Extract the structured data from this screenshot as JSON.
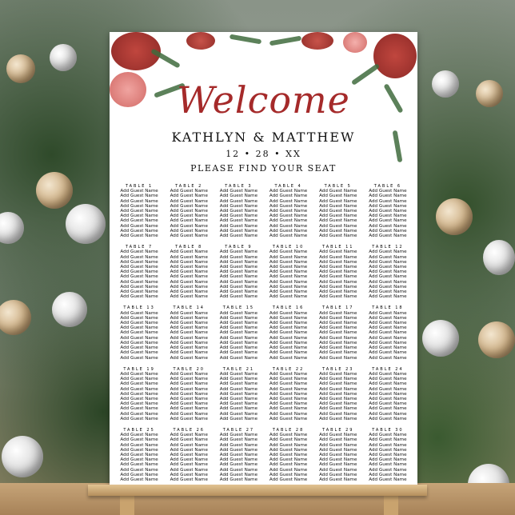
{
  "poster": {
    "welcome": "Welcome",
    "names": "KATHLYN & MATTHEW",
    "date": "12 • 28 • XX",
    "subtitle": "PLEASE FIND YOUR SEAT",
    "accent_color": "#a52a2a",
    "guest_placeholder": "Add Guest Name",
    "tables": [
      {
        "label": "TABLE 1",
        "guests": [
          "Add Guest Name",
          "Add Guest Name",
          "Add Guest Name",
          "Add Guest Name",
          "Add Guest Name",
          "Add Guest Name",
          "Add Guest Name",
          "Add Guest Name",
          "Add Guest Name",
          "Add Guest Name"
        ]
      },
      {
        "label": "TABLE 2",
        "guests": [
          "Add Guest Name",
          "Add Guest Name",
          "Add Guest Name",
          "Add Guest Name",
          "Add Guest Name",
          "Add Guest Name",
          "Add Guest Name",
          "Add Guest Name",
          "Add Guest Name",
          "Add Guest Name"
        ]
      },
      {
        "label": "TABLE 3",
        "guests": [
          "Add Guest Name",
          "Add Guest Name",
          "Add Guest Name",
          "Add Guest Name",
          "Add Guest Name",
          "Add Guest Name",
          "Add Guest Name",
          "Add Guest Name",
          "Add Guest Name",
          "Add Guest Name"
        ]
      },
      {
        "label": "TABLE 4",
        "guests": [
          "Add Guest Name",
          "Add Guest Name",
          "Add Guest Name",
          "Add Guest Name",
          "Add Guest Name",
          "Add Guest Name",
          "Add Guest Name",
          "Add Guest Name",
          "Add Guest Name",
          "Add Guest Name"
        ]
      },
      {
        "label": "TABLE 5",
        "guests": [
          "Add Guest Name",
          "Add Guest Name",
          "Add Guest Name",
          "Add Guest Name",
          "Add Guest Name",
          "Add Guest Name",
          "Add Guest Name",
          "Add Guest Name",
          "Add Guest Name",
          "Add Guest Name"
        ]
      },
      {
        "label": "TABLE 6",
        "guests": [
          "Add Guest Name",
          "Add Guest Name",
          "Add Guest Name",
          "Add Guest Name",
          "Add Guest Name",
          "Add Guest Name",
          "Add Guest Name",
          "Add Guest Name",
          "Add Guest Name",
          "Add Guest Name"
        ]
      },
      {
        "label": "TABLE 7",
        "guests": [
          "Add Guest Name",
          "Add Guest Name",
          "Add Guest Name",
          "Add Guest Name",
          "Add Guest Name",
          "Add Guest Name",
          "Add Guest Name",
          "Add Guest Name",
          "Add Guest Name",
          "Add Guest Name"
        ]
      },
      {
        "label": "TABLE 8",
        "guests": [
          "Add Guest Name",
          "Add Guest Name",
          "Add Guest Name",
          "Add Guest Name",
          "Add Guest Name",
          "Add Guest Name",
          "Add Guest Name",
          "Add Guest Name",
          "Add Guest Name",
          "Add Guest Name"
        ]
      },
      {
        "label": "TABLE 9",
        "guests": [
          "Add Guest Name",
          "Add Guest Name",
          "Add Guest Name",
          "Add Guest Name",
          "Add Guest Name",
          "Add Guest Name",
          "Add Guest Name",
          "Add Guest Name",
          "Add Guest Name",
          "Add Guest Name"
        ]
      },
      {
        "label": "TABLE 10",
        "guests": [
          "Add Guest Name",
          "Add Guest Name",
          "Add Guest Name",
          "Add Guest Name",
          "Add Guest Name",
          "Add Guest Name",
          "Add Guest Name",
          "Add Guest Name",
          "Add Guest Name",
          "Add Guest Name"
        ]
      },
      {
        "label": "TABLE 11",
        "guests": [
          "Add Guest Name",
          "Add Guest Name",
          "Add Guest Name",
          "Add Guest Name",
          "Add Guest Name",
          "Add Guest Name",
          "Add Guest Name",
          "Add Guest Name",
          "Add Guest Name",
          "Add Guest Name"
        ]
      },
      {
        "label": "TABLE 12",
        "guests": [
          "Add Guest Name",
          "Add Guest Name",
          "Add Guest Name",
          "Add Guest Name",
          "Add Guest Name",
          "Add Guest Name",
          "Add Guest Name",
          "Add Guest Name",
          "Add Guest Name",
          "Add Guest Name"
        ]
      },
      {
        "label": "TABLE 13",
        "guests": [
          "Add Guest Name",
          "Add Guest Name",
          "Add Guest Name",
          "Add Guest Name",
          "Add Guest Name",
          "Add Guest Name",
          "Add Guest Name",
          "Add Guest Name",
          "Add Guest Name",
          "Add Guest Name"
        ]
      },
      {
        "label": "TABLE 14",
        "guests": [
          "Add Guest Name",
          "Add Guest Name",
          "Add Guest Name",
          "Add Guest Name",
          "Add Guest Name",
          "Add Guest Name",
          "Add Guest Name",
          "Add Guest Name",
          "Add Guest Name",
          "Add Guest Name"
        ]
      },
      {
        "label": "TABLE 15",
        "guests": [
          "Add Guest Name",
          "Add Guest Name",
          "Add Guest Name",
          "Add Guest Name",
          "Add Guest Name",
          "Add Guest Name",
          "Add Guest Name",
          "Add Guest Name",
          "Add Guest Name",
          "Add Guest Name"
        ]
      },
      {
        "label": "TABLE 16",
        "guests": [
          "Add Guest Name",
          "Add Guest Name",
          "Add Guest Name",
          "Add Guest Name",
          "Add Guest Name",
          "Add Guest Name",
          "Add Guest Name",
          "Add Guest Name",
          "Add Guest Name",
          "Add Guest Name"
        ]
      },
      {
        "label": "TABLE 17",
        "guests": [
          "Add Guest Name",
          "Add Guest Name",
          "Add Guest Name",
          "Add Guest Name",
          "Add Guest Name",
          "Add Guest Name",
          "Add Guest Name",
          "Add Guest Name",
          "Add Guest Name",
          "Add Guest Name"
        ]
      },
      {
        "label": "TABLE 18",
        "guests": [
          "Add Guest Name",
          "Add Guest Name",
          "Add Guest Name",
          "Add Guest Name",
          "Add Guest Name",
          "Add Guest Name",
          "Add Guest Name",
          "Add Guest Name",
          "Add Guest Name",
          "Add Guest Name"
        ]
      },
      {
        "label": "TABLE 19",
        "guests": [
          "Add Guest Name",
          "Add Guest Name",
          "Add Guest Name",
          "Add Guest Name",
          "Add Guest Name",
          "Add Guest Name",
          "Add Guest Name",
          "Add Guest Name",
          "Add Guest Name",
          "Add Guest Name"
        ]
      },
      {
        "label": "TABLE 20",
        "guests": [
          "Add Guest Name",
          "Add Guest Name",
          "Add Guest Name",
          "Add Guest Name",
          "Add Guest Name",
          "Add Guest Name",
          "Add Guest Name",
          "Add Guest Name",
          "Add Guest Name",
          "Add Guest Name"
        ]
      },
      {
        "label": "TABLE 21",
        "guests": [
          "Add Guest Name",
          "Add Guest Name",
          "Add Guest Name",
          "Add Guest Name",
          "Add Guest Name",
          "Add Guest Name",
          "Add Guest Name",
          "Add Guest Name",
          "Add Guest Name",
          "Add Guest Name"
        ]
      },
      {
        "label": "TABLE 22",
        "guests": [
          "Add Guest Name",
          "Add Guest Name",
          "Add Guest Name",
          "Add Guest Name",
          "Add Guest Name",
          "Add Guest Name",
          "Add Guest Name",
          "Add Guest Name",
          "Add Guest Name",
          "Add Guest Name"
        ]
      },
      {
        "label": "TABLE 23",
        "guests": [
          "Add Guest Name",
          "Add Guest Name",
          "Add Guest Name",
          "Add Guest Name",
          "Add Guest Name",
          "Add Guest Name",
          "Add Guest Name",
          "Add Guest Name",
          "Add Guest Name",
          "Add Guest Name"
        ]
      },
      {
        "label": "TABLE 24",
        "guests": [
          "Add Guest Name",
          "Add Guest Name",
          "Add Guest Name",
          "Add Guest Name",
          "Add Guest Name",
          "Add Guest Name",
          "Add Guest Name",
          "Add Guest Name",
          "Add Guest Name",
          "Add Guest Name"
        ]
      },
      {
        "label": "TABLE 25",
        "guests": [
          "Add Guest Name",
          "Add Guest Name",
          "Add Guest Name",
          "Add Guest Name",
          "Add Guest Name",
          "Add Guest Name",
          "Add Guest Name",
          "Add Guest Name",
          "Add Guest Name",
          "Add Guest Name"
        ]
      },
      {
        "label": "TABLE 26",
        "guests": [
          "Add Guest Name",
          "Add Guest Name",
          "Add Guest Name",
          "Add Guest Name",
          "Add Guest Name",
          "Add Guest Name",
          "Add Guest Name",
          "Add Guest Name",
          "Add Guest Name",
          "Add Guest Name"
        ]
      },
      {
        "label": "TABLE 27",
        "guests": [
          "Add Guest Name",
          "Add Guest Name",
          "Add Guest Name",
          "Add Guest Name",
          "Add Guest Name",
          "Add Guest Name",
          "Add Guest Name",
          "Add Guest Name",
          "Add Guest Name",
          "Add Guest Name"
        ]
      },
      {
        "label": "TABLE 28",
        "guests": [
          "Add Guest Name",
          "Add Guest Name",
          "Add Guest Name",
          "Add Guest Name",
          "Add Guest Name",
          "Add Guest Name",
          "Add Guest Name",
          "Add Guest Name",
          "Add Guest Name",
          "Add Guest Name"
        ]
      },
      {
        "label": "TABLE 29",
        "guests": [
          "Add Guest Name",
          "Add Guest Name",
          "Add Guest Name",
          "Add Guest Name",
          "Add Guest Name",
          "Add Guest Name",
          "Add Guest Name",
          "Add Guest Name",
          "Add Guest Name",
          "Add Guest Name"
        ]
      },
      {
        "label": "TABLE 30",
        "guests": [
          "Add Guest Name",
          "Add Guest Name",
          "Add Guest Name",
          "Add Guest Name",
          "Add Guest Name",
          "Add Guest Name",
          "Add Guest Name",
          "Add Guest Name",
          "Add Guest Name",
          "Add Guest Name"
        ]
      }
    ]
  }
}
